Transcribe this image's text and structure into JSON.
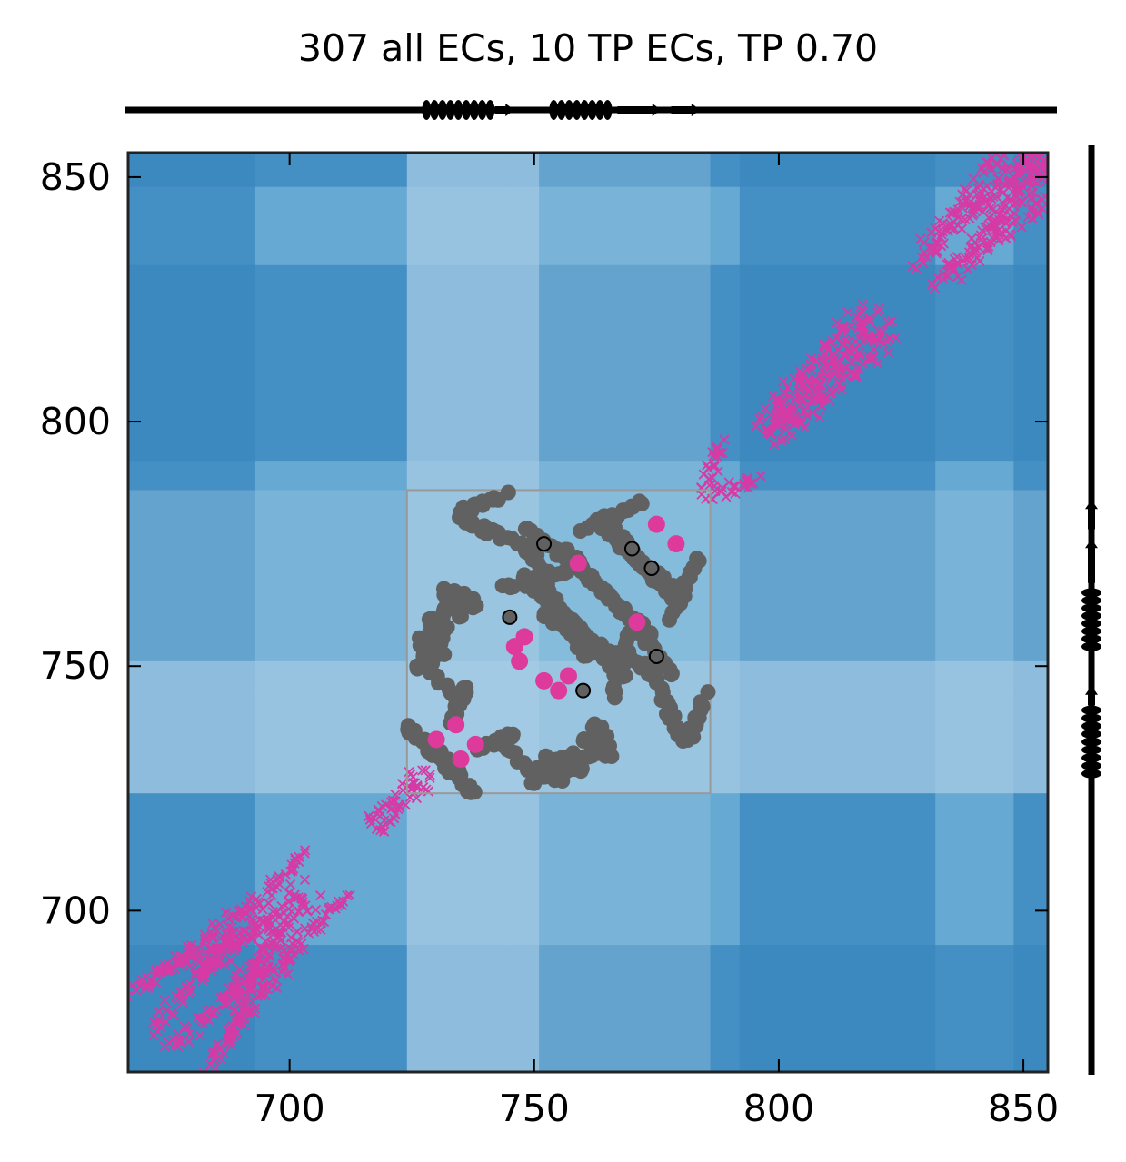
{
  "chart_data": {
    "type": "scatter",
    "title": "307 all ECs, 10 TP ECs, TP 0.70",
    "xlabel": "",
    "ylabel": "",
    "xlim": [
      667,
      855
    ],
    "ylim": [
      667,
      855
    ],
    "x_ticks": [
      700,
      750,
      800,
      850
    ],
    "y_ticks": [
      700,
      750,
      800,
      850
    ],
    "grid": false,
    "legend": "none",
    "colors": {
      "contact_cross": "#d63aa4",
      "all_ec": "#616161",
      "tp_ec": "#de3a9c",
      "circle_marker": "#000000",
      "background_dark": "#3a87bf",
      "background_mid": "#66a9d3",
      "background_light": "#9fc9e3",
      "background_pale": "#bad6eb",
      "zoom_box": "#999999"
    },
    "zoom_box": {
      "x": [
        724,
        786
      ],
      "y": [
        724,
        786
      ]
    },
    "background_bands": {
      "dark": [
        [
          667,
          693
        ],
        [
          792,
          832
        ],
        [
          848,
          855
        ]
      ],
      "pale": [
        [
          724,
          744
        ],
        [
          744,
          751
        ]
      ]
    },
    "secondary_structure": {
      "helices": [
        [
          728,
          741
        ],
        [
          754,
          765
        ],
        [
          728,
          741
        ],
        [
          754,
          765
        ]
      ],
      "strands": [
        [
          742,
          746
        ],
        [
          767,
          776
        ],
        [
          778,
          784
        ]
      ]
    },
    "contact_diagonal_segments": [
      [
        [
          667,
          683
        ],
        [
          693,
          702
        ]
      ],
      [
        [
          676,
          671
        ],
        [
          700,
          697
        ]
      ],
      [
        [
          672,
          686
        ],
        [
          705,
          702
        ]
      ],
      [
        [
          688,
          682
        ],
        [
          712,
          703
        ]
      ],
      [
        [
          718,
          716
        ],
        [
          728,
          727
        ]
      ],
      [
        [
          785,
          785
        ],
        [
          796,
          788
        ]
      ],
      [
        [
          798,
          798
        ],
        [
          820,
          822
        ]
      ],
      [
        [
          800,
          796
        ],
        [
          823,
          817
        ]
      ],
      [
        [
          832,
          828
        ],
        [
          855,
          852
        ]
      ],
      [
        [
          838,
          842
        ],
        [
          855,
          855
        ]
      ],
      [
        [
          836,
          830
        ],
        [
          855,
          846
        ]
      ]
    ],
    "tp_ecs": [
      {
        "x": 775,
        "y": 779
      },
      {
        "x": 779,
        "y": 775
      },
      {
        "x": 759,
        "y": 771
      },
      {
        "x": 771,
        "y": 759
      },
      {
        "x": 746,
        "y": 754
      },
      {
        "x": 748,
        "y": 756
      },
      {
        "x": 747,
        "y": 751
      },
      {
        "x": 752,
        "y": 747
      },
      {
        "x": 755,
        "y": 745
      },
      {
        "x": 757,
        "y": 748
      },
      {
        "x": 730,
        "y": 735
      },
      {
        "x": 734,
        "y": 738
      },
      {
        "x": 735,
        "y": 731
      },
      {
        "x": 738,
        "y": 734
      }
    ],
    "circled_ecs": [
      {
        "x": 752,
        "y": 775
      },
      {
        "x": 770,
        "y": 774
      },
      {
        "x": 774,
        "y": 770
      },
      {
        "x": 745,
        "y": 760
      },
      {
        "x": 775,
        "y": 752
      },
      {
        "x": 760,
        "y": 745
      }
    ]
  }
}
